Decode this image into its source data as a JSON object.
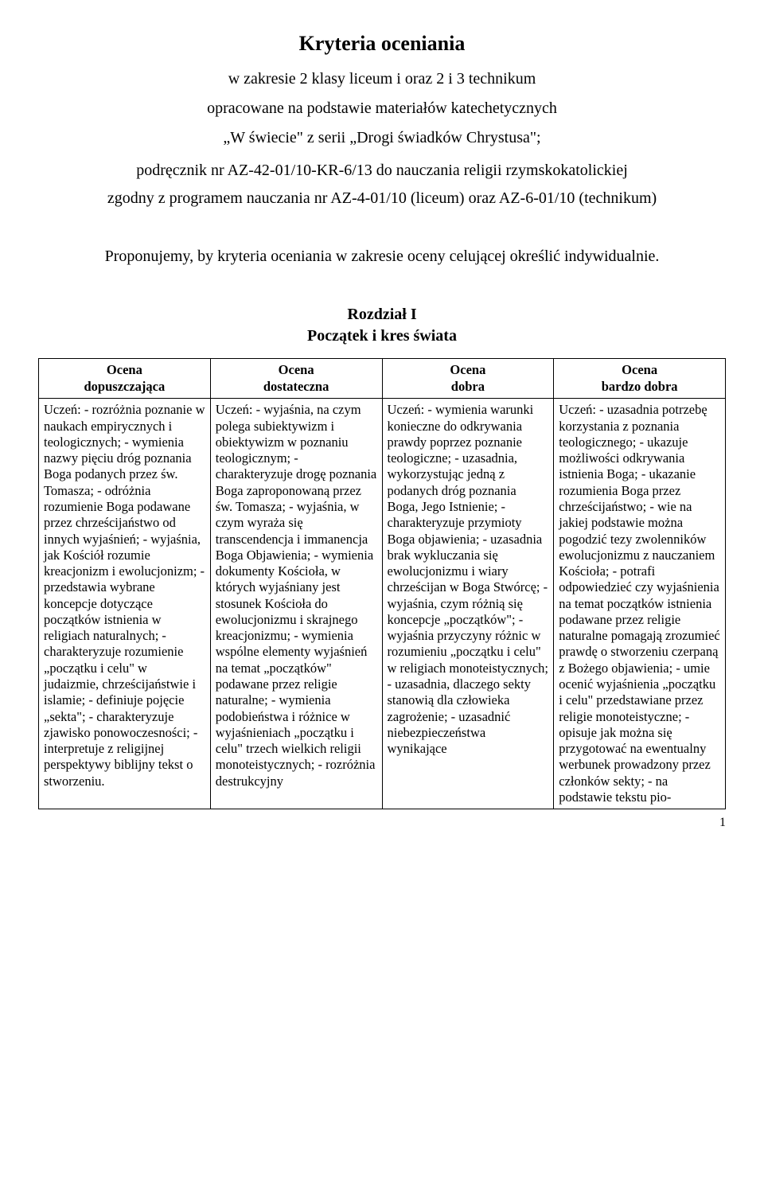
{
  "header": {
    "title": "Kryteria oceniania",
    "subtitle": "w zakresie 2 klasy liceum i oraz 2 i 3 technikum",
    "line1": "opracowane na podstawie materiałów katechetycznych",
    "series": "„W świecie\" z serii „Drogi świadków Chrystusa\";",
    "body1": "podręcznik nr AZ-42-01/10-KR-6/13 do nauczania religii rzymskokatolickiej",
    "body2": "zgodny z programem nauczania nr AZ-4-01/10 (liceum) oraz AZ-6-01/10 (technikum)",
    "note": "Proponujemy, by kryteria oceniania w zakresie oceny celującej określić indywidualnie."
  },
  "chapter": {
    "number": "Rozdział I",
    "title": "Początek i kres świata"
  },
  "table": {
    "columns": [
      "Ocena\ndopuszczająca",
      "Ocena\ndostateczna",
      "Ocena\ndobra",
      "Ocena\nbardzo dobra"
    ],
    "cells": {
      "c0": "Uczeń:\n- rozróżnia poznanie w naukach empirycznych i teologicznych;\n- wymienia nazwy pięciu dróg poznania Boga podanych przez św. Tomasza;\n- odróżnia rozumienie Boga podawane przez chrześcijaństwo od innych wyjaśnień;\n- wyjaśnia, jak Kościół rozumie kreacjonizm i ewolucjonizm;\n- przedstawia wybrane koncepcje dotyczące początków istnienia w religiach naturalnych;\n- charakteryzuje rozumienie „początku i celu\" w judaizmie, chrześcijaństwie i islamie;\n- definiuje pojęcie „sekta\";\n- charakteryzuje zjawisko ponowoczesności;\n- interpretuje z religijnej perspektywy biblijny tekst o stworzeniu.",
      "c1": "Uczeń:\n- wyjaśnia, na czym polega subiektywizm i obiektywizm w poznaniu teologicznym;\n- charakteryzuje drogę poznania Boga zaproponowaną przez św. Tomasza;\n- wyjaśnia, w czym wyraża się transcendencja i immanencja Boga Objawienia;\n- wymienia dokumenty Kościoła, w których wyjaśniany jest stosunek Kościoła do ewolucjonizmu i skrajnego kreacjonizmu;\n- wymienia wspólne elementy wyjaśnień na temat „początków\" podawane przez religie naturalne;\n- wymienia podobieństwa i różnice w wyjaśnieniach „początku i celu\" trzech wielkich religii monoteistycznych;\n- rozróżnia destrukcyjny",
      "c2": "Uczeń:\n- wymienia warunki konieczne do odkrywania prawdy poprzez poznanie teologiczne;\n- uzasadnia, wykorzystując jedną z podanych dróg poznania Boga, Jego Istnienie;\n- charakteryzuje przymioty Boga objawienia;\n- uzasadnia brak wykluczania się ewolucjonizmu i wiary chrześcijan w Boga Stwórcę;\n- wyjaśnia, czym różnią się koncepcje „początków\";\n- wyjaśnia przyczyny różnic w rozumieniu „początku i celu\" w religiach monoteistycznych;\n- uzasadnia, dlaczego sekty stanowią dla człowieka zagrożenie;\n- uzasadnić niebezpieczeństwa wynikające",
      "c3": "Uczeń:\n- uzasadnia potrzebę korzystania z poznania teologicznego;\n- ukazuje możliwości odkrywania istnienia Boga;\n- ukazanie rozumienia Boga przez chrześcijaństwo;\n- wie na jakiej podstawie można pogodzić tezy zwolenników ewolucjonizmu z nauczaniem Kościoła;\n- potrafi odpowiedzieć czy wyjaśnienia na temat początków istnienia podawane przez religie naturalne pomagają zrozumieć prawdę o stworzeniu czerpaną z Bożego objawienia;\n- umie ocenić wyjaśnienia „początku i celu\" przedstawiane przez religie monoteistyczne;\n- opisuje jak można się przygotować na ewentualny werbunek prowadzony przez członków sekty;\n- na podstawie tekstu pio-"
    }
  },
  "pageNumber": "1"
}
